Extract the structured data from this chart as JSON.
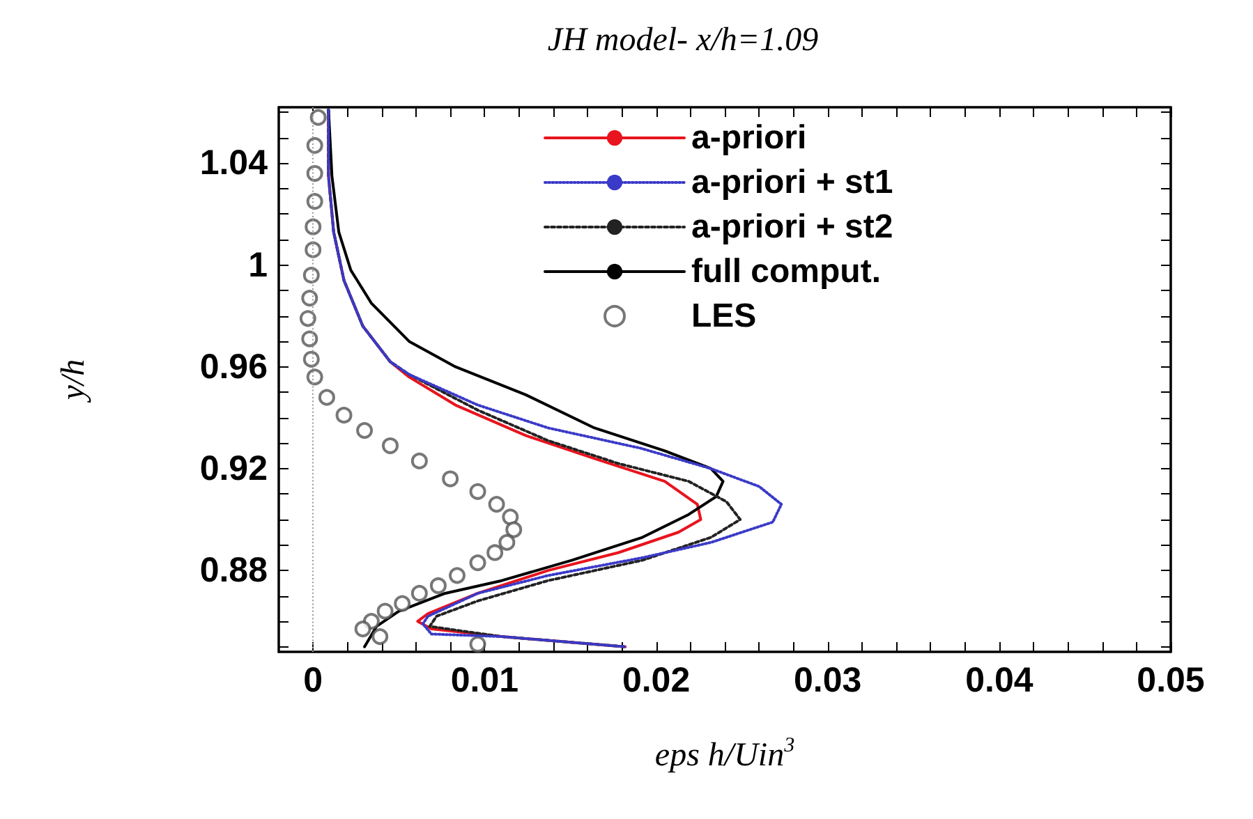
{
  "chart_data": {
    "type": "line",
    "title": "JH model- x/h=1.09",
    "xlabel": "eps h/Uin$^{3}$",
    "ylabel": "y/h",
    "xlim": [
      -0.002,
      0.05
    ],
    "ylim": [
      0.848,
      1.062
    ],
    "xticks": [
      0,
      {
        "value": 0.002,
        "label": null
      },
      {
        "value": 0.004,
        "label": null
      },
      {
        "value": 0.006,
        "label": null
      },
      {
        "value": 0.008,
        "label": null
      },
      0.01,
      {
        "value": 0.012,
        "label": null
      },
      {
        "value": 0.014,
        "label": null
      },
      {
        "value": 0.016,
        "label": null
      },
      {
        "value": 0.018,
        "label": null
      },
      0.02,
      {
        "value": 0.022,
        "label": null
      },
      {
        "value": 0.024,
        "label": null
      },
      {
        "value": 0.026,
        "label": null
      },
      {
        "value": 0.028,
        "label": null
      },
      0.03,
      {
        "value": 0.032,
        "label": null
      },
      {
        "value": 0.034,
        "label": null
      },
      {
        "value": 0.036,
        "label": null
      },
      {
        "value": 0.038,
        "label": null
      },
      0.04,
      {
        "value": 0.042,
        "label": null
      },
      {
        "value": 0.044,
        "label": null
      },
      {
        "value": 0.046,
        "label": null
      },
      {
        "value": 0.048,
        "label": null
      },
      0.05
    ],
    "yticks": [
      {
        "value": 0.85,
        "label": null
      },
      {
        "value": 0.86,
        "label": null
      },
      {
        "value": 0.87,
        "label": null
      },
      0.88,
      {
        "value": 0.89,
        "label": null
      },
      {
        "value": 0.9,
        "label": null
      },
      {
        "value": 0.91,
        "label": null
      },
      0.92,
      {
        "value": 0.93,
        "label": null
      },
      {
        "value": 0.94,
        "label": null
      },
      {
        "value": 0.95,
        "label": null
      },
      0.96,
      {
        "value": 0.97,
        "label": null
      },
      {
        "value": 0.98,
        "label": null
      },
      {
        "value": 0.99,
        "label": null
      },
      1,
      {
        "value": 1.01,
        "label": null
      },
      {
        "value": 1.02,
        "label": null
      },
      {
        "value": 1.03,
        "label": null
      },
      1.04,
      {
        "value": 1.05,
        "label": null
      },
      {
        "value": 1.06,
        "label": null
      }
    ],
    "grid": false,
    "legend": "top right",
    "ref_lines": [
      {
        "axis": "x",
        "value": 0,
        "color": "#999999",
        "line_style": "dotted"
      }
    ],
    "series": [
      {
        "name": "a-priori",
        "color": "#e8141e",
        "line_style": "solid",
        "marker": "none",
        "x": [
          0.0009,
          0.0009,
          0.0012,
          0.0018,
          0.0029,
          0.0045,
          0.0056,
          0.0083,
          0.0124,
          0.0164,
          0.0205,
          0.0224,
          0.0226,
          0.0213,
          0.0178,
          0.0137,
          0.0096,
          0.0067,
          0.0061,
          0.0069,
          0.011,
          0.0182
        ],
        "values": [
          1.061,
          1.035,
          1.013,
          0.994,
          0.976,
          0.962,
          0.956,
          0.945,
          0.933,
          0.924,
          0.915,
          0.906,
          0.9,
          0.895,
          0.887,
          0.88,
          0.871,
          0.863,
          0.86,
          0.857,
          0.854,
          0.85
        ]
      },
      {
        "name": "a-priori + st1",
        "color": "#3a3ac8",
        "line_style": "dotted",
        "marker": "none",
        "x": [
          0.0009,
          0.0009,
          0.0012,
          0.0018,
          0.0029,
          0.0045,
          0.0056,
          0.0096,
          0.0137,
          0.0191,
          0.0232,
          0.026,
          0.0273,
          0.0268,
          0.0232,
          0.0192,
          0.0137,
          0.0096,
          0.0067,
          0.0064,
          0.0069,
          0.011,
          0.0182
        ],
        "values": [
          1.061,
          1.035,
          1.013,
          0.994,
          0.976,
          0.962,
          0.957,
          0.945,
          0.936,
          0.928,
          0.92,
          0.913,
          0.906,
          0.899,
          0.891,
          0.885,
          0.878,
          0.871,
          0.862,
          0.859,
          0.855,
          0.854,
          0.85
        ]
      },
      {
        "name": "a-priori + st2",
        "color": "#222222",
        "line_style": "dashed",
        "marker": "none",
        "x": [
          0.0009,
          0.0009,
          0.0012,
          0.0018,
          0.0029,
          0.0045,
          0.0056,
          0.0096,
          0.0137,
          0.0178,
          0.0219,
          0.0241,
          0.0249,
          0.0232,
          0.0192,
          0.0137,
          0.0096,
          0.0072,
          0.0068,
          0.011,
          0.0182
        ],
        "values": [
          1.061,
          1.035,
          1.013,
          0.994,
          0.976,
          0.962,
          0.957,
          0.943,
          0.931,
          0.922,
          0.915,
          0.907,
          0.9,
          0.893,
          0.884,
          0.876,
          0.868,
          0.862,
          0.858,
          0.854,
          0.85
        ]
      },
      {
        "name": "full comput.",
        "color": "#000000",
        "line_style": "solid",
        "marker": "none",
        "x": [
          0.0009,
          0.0011,
          0.0015,
          0.0022,
          0.0034,
          0.0056,
          0.0083,
          0.0124,
          0.0164,
          0.0205,
          0.0232,
          0.0239,
          0.0235,
          0.0219,
          0.0192,
          0.0151,
          0.011,
          0.0077,
          0.005,
          0.0037,
          0.003
        ],
        "values": [
          1.061,
          1.035,
          1.013,
          0.998,
          0.985,
          0.97,
          0.96,
          0.949,
          0.936,
          0.927,
          0.92,
          0.915,
          0.909,
          0.902,
          0.893,
          0.884,
          0.876,
          0.871,
          0.864,
          0.858,
          0.85
        ]
      },
      {
        "name": "LES",
        "type": "scatter",
        "color": "#555555",
        "marker": "circle",
        "x": [
          0.0003,
          0.0001,
          0.0001,
          0.0001,
          0.0,
          0.0,
          -0.0001,
          -0.0002,
          -0.0003,
          -0.0002,
          -0.0001,
          0.0001,
          0.0008,
          0.0018,
          0.003,
          0.0045,
          0.0062,
          0.008,
          0.0096,
          0.0107,
          0.0115,
          0.0117,
          0.0113,
          0.0106,
          0.0096,
          0.0084,
          0.0073,
          0.0062,
          0.0052,
          0.0042,
          0.0034,
          0.0029,
          0.0039,
          0.0096
        ],
        "values": [
          1.058,
          1.047,
          1.036,
          1.025,
          1.015,
          1.006,
          0.996,
          0.987,
          0.979,
          0.971,
          0.963,
          0.956,
          0.948,
          0.941,
          0.935,
          0.929,
          0.923,
          0.916,
          0.911,
          0.906,
          0.901,
          0.896,
          0.891,
          0.887,
          0.883,
          0.878,
          0.874,
          0.871,
          0.867,
          0.864,
          0.86,
          0.857,
          0.854,
          0.851
        ]
      }
    ]
  }
}
